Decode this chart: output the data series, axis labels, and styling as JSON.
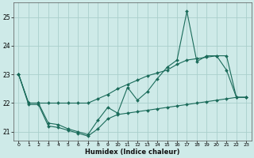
{
  "xlabel": "Humidex (Indice chaleur)",
  "background_color": "#ceeae8",
  "grid_color": "#aacfcc",
  "line_color": "#1a6b5a",
  "x": [
    0,
    1,
    2,
    3,
    4,
    5,
    6,
    7,
    8,
    9,
    10,
    11,
    12,
    13,
    14,
    15,
    16,
    17,
    18,
    19,
    20,
    21,
    22,
    23
  ],
  "y_line1": [
    23.0,
    22.0,
    22.0,
    22.0,
    22.0,
    22.0,
    22.0,
    22.0,
    22.15,
    22.3,
    22.5,
    22.65,
    22.8,
    22.95,
    23.05,
    23.15,
    23.35,
    23.5,
    23.55,
    23.6,
    23.65,
    23.65,
    22.2,
    22.2
  ],
  "y_line2": [
    23.0,
    22.0,
    22.0,
    21.3,
    21.25,
    21.1,
    21.0,
    20.9,
    21.4,
    21.85,
    21.65,
    22.55,
    22.1,
    22.4,
    22.85,
    23.25,
    23.5,
    25.2,
    23.45,
    23.65,
    23.65,
    23.15,
    22.2,
    22.2
  ],
  "y_line3": [
    23.0,
    21.95,
    21.95,
    21.2,
    21.15,
    21.05,
    20.95,
    20.85,
    21.1,
    21.45,
    21.6,
    21.65,
    21.7,
    21.75,
    21.8,
    21.85,
    21.9,
    21.95,
    22.0,
    22.05,
    22.1,
    22.15,
    22.2,
    22.2
  ],
  "ylim": [
    20.7,
    25.5
  ],
  "yticks": [
    21,
    22,
    23,
    24,
    25
  ],
  "xlim": [
    -0.5,
    23.5
  ],
  "xticks": [
    0,
    1,
    2,
    3,
    4,
    5,
    6,
    7,
    8,
    9,
    10,
    11,
    12,
    13,
    14,
    15,
    16,
    17,
    18,
    19,
    20,
    21,
    22,
    23
  ]
}
